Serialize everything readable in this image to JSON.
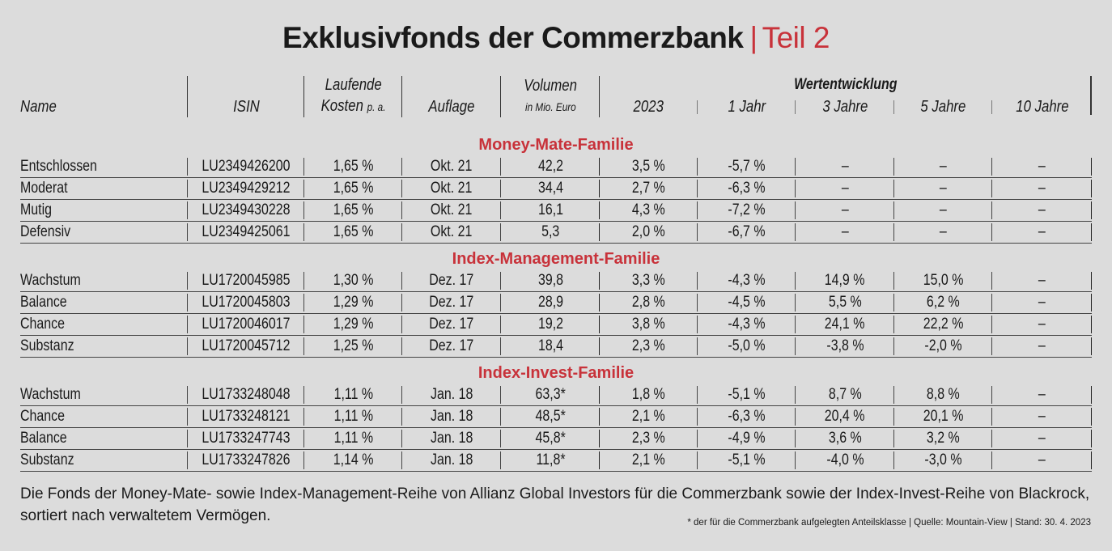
{
  "title": {
    "main": "Exklusivfonds der Commerzbank",
    "separator": "|",
    "part": "Teil 2"
  },
  "columns": {
    "name": "Name",
    "isin": "ISIN",
    "kosten_line1": "Laufende",
    "kosten_line2": "Kosten",
    "kosten_unit": "p. a.",
    "auflage": "Auflage",
    "volumen_line1": "Volumen",
    "volumen_unit": "in Mio. Euro",
    "wertentwicklung": "Wertentwicklung",
    "y2023": "2023",
    "j1": "1 Jahr",
    "j3": "3 Jahre",
    "j5": "5 Jahre",
    "j10": "10 Jahre"
  },
  "sections": [
    {
      "title": "Money-Mate-Familie",
      "rows": [
        [
          "Entschlossen",
          "LU2349426200",
          "1,65 %",
          "Okt. 21",
          "42,2",
          "3,5 %",
          "-5,7 %",
          "–",
          "–",
          "–"
        ],
        [
          "Moderat",
          "LU2349429212",
          "1,65 %",
          "Okt. 21",
          "34,4",
          "2,7 %",
          "-6,3 %",
          "–",
          "–",
          "–"
        ],
        [
          "Mutig",
          "LU2349430228",
          "1,65 %",
          "Okt. 21",
          "16,1",
          "4,3 %",
          "-7,2 %",
          "–",
          "–",
          "–"
        ],
        [
          "Defensiv",
          "LU2349425061",
          "1,65 %",
          "Okt. 21",
          "5,3",
          "2,0 %",
          "-6,7 %",
          "–",
          "–",
          "–"
        ]
      ]
    },
    {
      "title": "Index-Management-Familie",
      "rows": [
        [
          "Wachstum",
          "LU1720045985",
          "1,30 %",
          "Dez. 17",
          "39,8",
          "3,3 %",
          "-4,3 %",
          "14,9 %",
          "15,0 %",
          "–"
        ],
        [
          "Balance",
          "LU1720045803",
          "1,29 %",
          "Dez. 17",
          "28,9",
          "2,8 %",
          "-4,5 %",
          "5,5 %",
          "6,2 %",
          "–"
        ],
        [
          "Chance",
          "LU1720046017",
          "1,29 %",
          "Dez. 17",
          "19,2",
          "3,8 %",
          "-4,3 %",
          "24,1 %",
          "22,2 %",
          "–"
        ],
        [
          "Substanz",
          "LU1720045712",
          "1,25 %",
          "Dez. 17",
          "18,4",
          "2,3 %",
          "-5,0 %",
          "-3,8 %",
          "-2,0 %",
          "–"
        ]
      ]
    },
    {
      "title": "Index-Invest-Familie",
      "rows": [
        [
          "Wachstum",
          "LU1733248048",
          "1,11 %",
          "Jan. 18",
          "63,3*",
          "1,8 %",
          "-5,1 %",
          "8,7 %",
          "8,8 %",
          "–"
        ],
        [
          "Chance",
          "LU1733248121",
          "1,11 %",
          "Jan. 18",
          "48,5*",
          "2,1 %",
          "-6,3 %",
          "20,4 %",
          "20,1 %",
          "–"
        ],
        [
          "Balance",
          "LU1733247743",
          "1,11 %",
          "Jan. 18",
          "45,8*",
          "2,3 %",
          "-4,9 %",
          "3,6 %",
          "3,2 %",
          "–"
        ],
        [
          "Substanz",
          "LU1733247826",
          "1,14 %",
          "Jan. 18",
          "11,8*",
          "2,1 %",
          "-5,1 %",
          "-4,0 %",
          "-3,0 %",
          "–"
        ]
      ]
    }
  ],
  "footer": {
    "text": "Die Fonds der Money-Mate- sowie Index-Management-Reihe von Allianz Global Investors für die Commerzbank sowie der Index-Invest-Reihe von Blackrock, sortiert nach verwaltetem Vermögen.",
    "footnote": "* der für die Commerzbank aufgelegten Anteilsklasse | Quelle: Mountain-View | Stand: 30. 4. 2023"
  },
  "colors": {
    "accent": "#c8323a",
    "background": "#dcdcdc",
    "text": "#1a1a1a"
  }
}
